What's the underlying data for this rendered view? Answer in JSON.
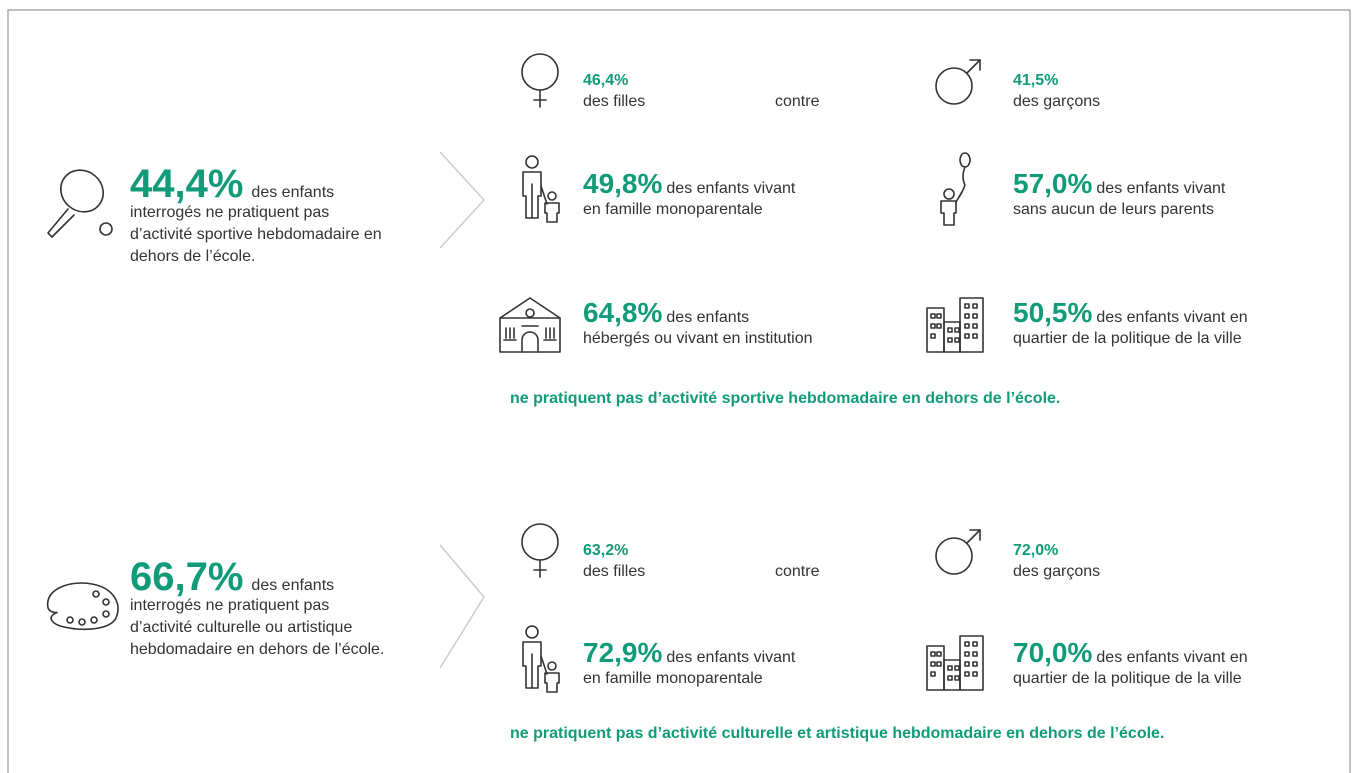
{
  "sections": [
    {
      "headline": {
        "value": "44,4%",
        "text": "des enfants",
        "lines": [
          "interrogés ne pratiquent pas",
          "d’activité sportive hebdomadaire en",
          "dehors de l’école."
        ]
      },
      "connector": "contre",
      "items": [
        {
          "value": "46,4%",
          "lines": [
            "des filles"
          ]
        },
        {
          "value": "41,5%",
          "lines": [
            "des garçons"
          ]
        },
        {
          "value": "49,8%",
          "text": "des enfants vivant",
          "line2": "en famille monoparentale"
        },
        {
          "value": "57,0%",
          "text": "des enfants vivant",
          "line2": "sans aucun de leurs parents"
        },
        {
          "value": "64,8%",
          "text": "des enfants",
          "line2": "hébergés ou vivant en institution"
        },
        {
          "value": "50,5%",
          "text": "des enfants vivant en",
          "line2": "quartier de la politique de la ville"
        }
      ],
      "footer": "ne pratiquent pas d’activité sportive hebdomadaire en dehors de l’école."
    },
    {
      "headline": {
        "value": "66,7%",
        "text": "des enfants",
        "lines": [
          "interrogés ne pratiquent pas",
          "d’activité culturelle ou artistique",
          "hebdomadaire en dehors de l’école."
        ]
      },
      "connector": "contre",
      "items": [
        {
          "value": "63,2%",
          "lines": [
            "des filles"
          ]
        },
        {
          "value": "72,0%",
          "lines": [
            "des garçons"
          ]
        },
        {
          "value": "72,9%",
          "text": "des enfants vivant",
          "line2": "en famille monoparentale"
        },
        {
          "value": "70,0%",
          "text": "des enfants vivant en",
          "line2": "quartier de la politique de la ville"
        }
      ],
      "footer": "ne pratiquent pas d’activité culturelle et artistique hebdomadaire en dehors de l’école."
    }
  ]
}
